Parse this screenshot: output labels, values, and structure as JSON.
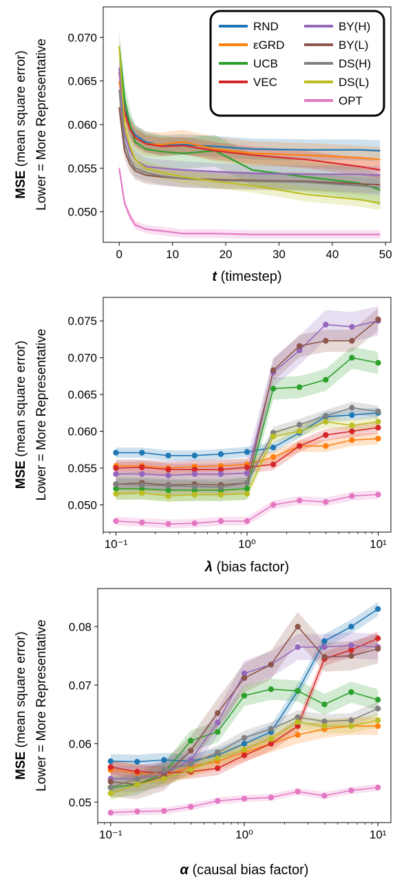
{
  "chart_data": [
    {
      "type": "line",
      "xlabel_var": "t",
      "xlabel_rest": " (timestep)",
      "ylabel_bold": "MSE",
      "ylabel_rest": " (mean square error)",
      "ylabel_line2": "Lower = More Representative",
      "xscale": "linear",
      "xlim": [
        -3,
        51
      ],
      "ylim": [
        0.0465,
        0.0735
      ],
      "xticks": [
        0,
        10,
        20,
        30,
        40,
        50
      ],
      "xtick_labels": [
        "0",
        "10",
        "20",
        "30",
        "40",
        "50"
      ],
      "yticks": [
        0.05,
        0.055,
        0.06,
        0.065,
        0.07
      ],
      "ytick_labels": [
        "0.050",
        "0.055",
        "0.060",
        "0.065",
        "0.070"
      ],
      "legend": "top-right",
      "markers": false,
      "x_points": [
        [
          0,
          0
        ],
        [
          1,
          0.5
        ],
        [
          2,
          1
        ],
        [
          3,
          2
        ],
        [
          5,
          3
        ],
        [
          8,
          4
        ],
        [
          12,
          6
        ],
        [
          18,
          10
        ],
        [
          25,
          16
        ],
        [
          35,
          24
        ],
        [
          45,
          32
        ],
        [
          49,
          40
        ]
      ],
      "series": [
        {
          "name": "RND",
          "color": "#1f77b4",
          "y": [
            0.0665,
            0.0618,
            0.0598,
            0.0588,
            0.058,
            0.0576,
            0.0577,
            0.0575,
            0.0572,
            0.0571,
            0.0571,
            0.057
          ],
          "band": 0.0012
        },
        {
          "name": "εGRD",
          "color": "#ff7f0e",
          "y": [
            0.065,
            0.0612,
            0.0595,
            0.0585,
            0.0578,
            0.0577,
            0.058,
            0.0572,
            0.0567,
            0.0565,
            0.0562,
            0.056
          ],
          "band": 0.0014
        },
        {
          "name": "UCB",
          "color": "#2ca02c",
          "y": [
            0.069,
            0.063,
            0.06,
            0.058,
            0.0572,
            0.0569,
            0.0567,
            0.057,
            0.0548,
            0.054,
            0.0533,
            0.0525
          ],
          "band": 0.0018
        },
        {
          "name": "VEC",
          "color": "#d62728",
          "y": [
            0.066,
            0.0615,
            0.0595,
            0.0585,
            0.0578,
            0.0575,
            0.0576,
            0.057,
            0.0565,
            0.056,
            0.0552,
            0.0548
          ],
          "band": 0.001
        },
        {
          "name": "BY(H)",
          "color": "#9467bd",
          "y": [
            0.0665,
            0.059,
            0.057,
            0.056,
            0.0552,
            0.055,
            0.0548,
            0.0546,
            0.0544,
            0.0543,
            0.0543,
            0.0542
          ],
          "band": 0.001
        },
        {
          "name": "BY(L)",
          "color": "#8c564b",
          "y": [
            0.062,
            0.057,
            0.0555,
            0.0547,
            0.0542,
            0.054,
            0.0538,
            0.0537,
            0.0536,
            0.0535,
            0.0532,
            0.0531
          ],
          "band": 0.001
        },
        {
          "name": "DS(H)",
          "color": "#7f7f7f",
          "y": [
            0.064,
            0.058,
            0.056,
            0.055,
            0.0545,
            0.0541,
            0.0538,
            0.0536,
            0.0535,
            0.0534,
            0.053,
            0.0528
          ],
          "band": 0.001
        },
        {
          "name": "DS(L)",
          "color": "#bcbd22",
          "y": [
            0.069,
            0.06,
            0.0575,
            0.056,
            0.055,
            0.0545,
            0.054,
            0.0535,
            0.053,
            0.052,
            0.0514,
            0.051
          ],
          "band": 0.0008
        },
        {
          "name": "OPT",
          "color": "#e377c2",
          "y": [
            0.055,
            0.051,
            0.0495,
            0.0485,
            0.048,
            0.0478,
            0.0475,
            0.0475,
            0.0474,
            0.0474,
            0.0474,
            0.0474
          ],
          "band": 0.0005
        }
      ]
    },
    {
      "type": "line",
      "xlabel_var": "λ",
      "xlabel_rest": " (bias factor)",
      "ylabel_bold": "MSE",
      "ylabel_rest": " (mean square error)",
      "ylabel_line2": "Lower = More Representative",
      "xscale": "log",
      "xlim": [
        0.08,
        12.5
      ],
      "ylim": [
        0.0463,
        0.0782
      ],
      "xticks": [
        0.1,
        1,
        10
      ],
      "xtick_labels": [
        "10⁻¹",
        "10⁰",
        "10¹"
      ],
      "yticks": [
        0.05,
        0.055,
        0.06,
        0.065,
        0.07,
        0.075
      ],
      "ytick_labels": [
        "0.050",
        "0.055",
        "0.060",
        "0.065",
        "0.070",
        "0.075"
      ],
      "legend": "none",
      "markers": true,
      "x": [
        0.1,
        0.158,
        0.251,
        0.398,
        0.631,
        1.0,
        1.585,
        2.512,
        3.981,
        6.31,
        10.0
      ],
      "series": [
        {
          "name": "RND",
          "color": "#1f77b4",
          "y": [
            0.0571,
            0.0571,
            0.0567,
            0.0567,
            0.0569,
            0.0572,
            0.0578,
            0.0598,
            0.062,
            0.0622,
            0.0625
          ],
          "band": 0.0007
        },
        {
          "name": "εGRD",
          "color": "#ff7f0e",
          "y": [
            0.0553,
            0.0553,
            0.055,
            0.0552,
            0.0553,
            0.0555,
            0.0565,
            0.058,
            0.058,
            0.0588,
            0.059
          ],
          "band": 0.0008
        },
        {
          "name": "UCB",
          "color": "#2ca02c",
          "y": [
            0.0522,
            0.0522,
            0.052,
            0.052,
            0.052,
            0.0522,
            0.0658,
            0.066,
            0.067,
            0.07,
            0.0693
          ],
          "band": 0.0015
        },
        {
          "name": "VEC",
          "color": "#d62728",
          "y": [
            0.055,
            0.0551,
            0.0548,
            0.0548,
            0.0548,
            0.0551,
            0.0555,
            0.058,
            0.0595,
            0.06,
            0.0605
          ],
          "band": 0.0008
        },
        {
          "name": "BY(H)",
          "color": "#9467bd",
          "y": [
            0.0542,
            0.0542,
            0.054,
            0.0542,
            0.0542,
            0.0543,
            0.068,
            0.071,
            0.0745,
            0.0742,
            0.075
          ],
          "band": 0.002
        },
        {
          "name": "BY(L)",
          "color": "#8c564b",
          "y": [
            0.0528,
            0.053,
            0.0527,
            0.0528,
            0.0527,
            0.053,
            0.0683,
            0.0716,
            0.0723,
            0.0723,
            0.0752
          ],
          "band": 0.0015
        },
        {
          "name": "DS(H)",
          "color": "#7f7f7f",
          "y": [
            0.0528,
            0.0527,
            0.0526,
            0.0525,
            0.0524,
            0.053,
            0.0598,
            0.0609,
            0.0621,
            0.0632,
            0.0627
          ],
          "band": 0.0008
        },
        {
          "name": "DS(L)",
          "color": "#bcbd22",
          "y": [
            0.0515,
            0.0516,
            0.0512,
            0.0514,
            0.0514,
            0.0515,
            0.0593,
            0.06,
            0.0613,
            0.0608,
            0.0613
          ],
          "band": 0.0008
        },
        {
          "name": "OPT",
          "color": "#e377c2",
          "y": [
            0.0478,
            0.0476,
            0.0474,
            0.0475,
            0.0478,
            0.0478,
            0.05,
            0.0506,
            0.0504,
            0.0512,
            0.0514
          ],
          "band": 0.0006
        }
      ]
    },
    {
      "type": "line",
      "xlabel_var": "α",
      "xlabel_rest": " (causal bias factor)",
      "ylabel_bold": "MSE",
      "ylabel_rest": " (mean square error)",
      "ylabel_line2": "Lower = More Representative",
      "xscale": "log",
      "xlim": [
        0.08,
        12.5
      ],
      "ylim": [
        0.0465,
        0.0865
      ],
      "xticks": [
        0.1,
        1,
        10
      ],
      "xtick_labels": [
        "10⁻¹",
        "10⁰",
        "10¹"
      ],
      "yticks": [
        0.05,
        0.06,
        0.07,
        0.08
      ],
      "ytick_labels": [
        "0.05",
        "0.06",
        "0.07",
        "0.08"
      ],
      "legend": "none",
      "markers": true,
      "x": [
        0.1,
        0.158,
        0.251,
        0.398,
        0.631,
        1.0,
        1.585,
        2.512,
        3.981,
        6.31,
        10.0
      ],
      "series": [
        {
          "name": "RND",
          "color": "#1f77b4",
          "y": [
            0.057,
            0.0569,
            0.0572,
            0.057,
            0.058,
            0.06,
            0.062,
            0.069,
            0.0775,
            0.08,
            0.083
          ],
          "band": 0.0012
        },
        {
          "name": "εGRD",
          "color": "#ff7f0e",
          "y": [
            0.0555,
            0.055,
            0.0545,
            0.056,
            0.057,
            0.0585,
            0.06,
            0.0615,
            0.0625,
            0.063,
            0.063
          ],
          "band": 0.0015
        },
        {
          "name": "UCB",
          "color": "#2ca02c",
          "y": [
            0.0525,
            0.053,
            0.055,
            0.0605,
            0.062,
            0.0682,
            0.0693,
            0.069,
            0.0667,
            0.0688,
            0.0675
          ],
          "band": 0.0018
        },
        {
          "name": "VEC",
          "color": "#d62728",
          "y": [
            0.056,
            0.0552,
            0.055,
            0.0552,
            0.0558,
            0.058,
            0.06,
            0.063,
            0.0745,
            0.076,
            0.078
          ],
          "band": 0.0012
        },
        {
          "name": "BY(H)",
          "color": "#9467bd",
          "y": [
            0.054,
            0.054,
            0.0548,
            0.0572,
            0.0636,
            0.072,
            0.0735,
            0.0765,
            0.0765,
            0.0768,
            0.0765
          ],
          "band": 0.0022
        },
        {
          "name": "BY(L)",
          "color": "#8c564b",
          "y": [
            0.0535,
            0.053,
            0.0545,
            0.0588,
            0.0652,
            0.0712,
            0.0735,
            0.08,
            0.0748,
            0.075,
            0.0762
          ],
          "band": 0.0025
        },
        {
          "name": "DS(H)",
          "color": "#7f7f7f",
          "y": [
            0.0525,
            0.054,
            0.0555,
            0.0565,
            0.0585,
            0.061,
            0.0625,
            0.0645,
            0.0638,
            0.064,
            0.066
          ],
          "band": 0.0012
        },
        {
          "name": "DS(L)",
          "color": "#bcbd22",
          "y": [
            0.0515,
            0.053,
            0.054,
            0.0555,
            0.0575,
            0.059,
            0.0608,
            0.0637,
            0.063,
            0.063,
            0.064
          ],
          "band": 0.0012
        },
        {
          "name": "OPT",
          "color": "#e377c2",
          "y": [
            0.0482,
            0.0484,
            0.0485,
            0.0492,
            0.0502,
            0.0506,
            0.0508,
            0.0518,
            0.0511,
            0.052,
            0.0525
          ],
          "band": 0.0006
        }
      ]
    }
  ]
}
